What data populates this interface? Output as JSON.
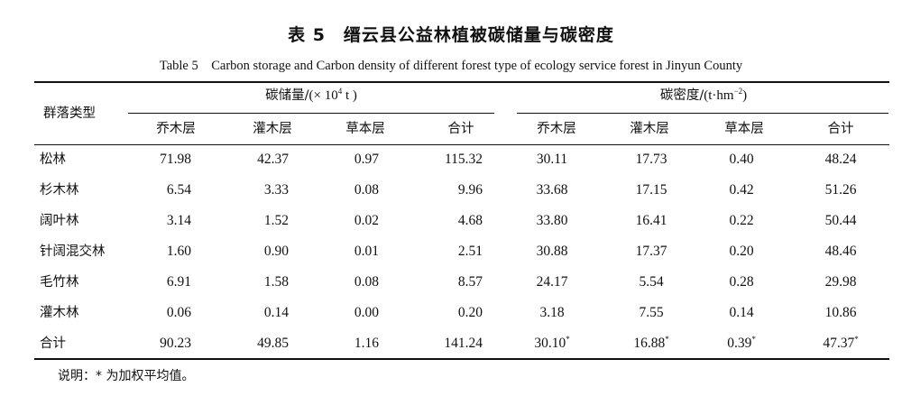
{
  "title_cn": "表 5　缙云县公益林植被碳储量与碳密度",
  "title_en": "Table 5　Carbon storage and Carbon density of different forest type of ecology service forest in Jinyun County",
  "header": {
    "row_label": "群落类型",
    "storage_group": {
      "label": "碳储量/",
      "unit_prefix": "(× 10",
      "unit_sup": "4",
      "unit_suffix": " t )"
    },
    "density_group": {
      "label": "碳密度/",
      "unit_prefix": "(t·hm",
      "unit_sup": "−2",
      "unit_suffix": ")"
    },
    "storage_cols": [
      "乔木层",
      "灌木层",
      "草本层",
      "合计"
    ],
    "density_cols": [
      "乔木层",
      "灌木层",
      "草本层",
      "合计"
    ]
  },
  "rows": [
    {
      "name": "松林",
      "storage": [
        "71.98",
        "42.37",
        "0.97",
        "115.32"
      ],
      "density": [
        "30.11",
        "17.73",
        "0.40",
        "48.24"
      ],
      "density_marks": [
        "",
        "",
        "",
        ""
      ]
    },
    {
      "name": "杉木林",
      "storage": [
        "6.54",
        "3.33",
        "0.08",
        "9.96"
      ],
      "density": [
        "33.68",
        "17.15",
        "0.42",
        "51.26"
      ],
      "density_marks": [
        "",
        "",
        "",
        ""
      ]
    },
    {
      "name": "阔叶林",
      "storage": [
        "3.14",
        "1.52",
        "0.02",
        "4.68"
      ],
      "density": [
        "33.80",
        "16.41",
        "0.22",
        "50.44"
      ],
      "density_marks": [
        "",
        "",
        "",
        ""
      ]
    },
    {
      "name": "针阔混交林",
      "storage": [
        "1.60",
        "0.90",
        "0.01",
        "2.51"
      ],
      "density": [
        "30.88",
        "17.37",
        "0.20",
        "48.46"
      ],
      "density_marks": [
        "",
        "",
        "",
        ""
      ]
    },
    {
      "name": "毛竹林",
      "storage": [
        "6.91",
        "1.58",
        "0.08",
        "8.57"
      ],
      "density": [
        "24.17",
        "5.54",
        "0.28",
        "29.98"
      ],
      "density_marks": [
        "",
        "",
        "",
        ""
      ]
    },
    {
      "name": "灌木林",
      "storage": [
        "0.06",
        "0.14",
        "0.00",
        "0.20"
      ],
      "density": [
        "3.18",
        "7.55",
        "0.14",
        "10.86"
      ],
      "density_marks": [
        "",
        "",
        "",
        ""
      ]
    },
    {
      "name": "合计",
      "storage": [
        "90.23",
        "49.85",
        "1.16",
        "141.24"
      ],
      "density": [
        "30.10",
        "16.88",
        "0.39",
        "47.37"
      ],
      "density_marks": [
        "*",
        "*",
        "*",
        "*"
      ]
    }
  ],
  "footnote": "说明：* 为加权平均值。"
}
